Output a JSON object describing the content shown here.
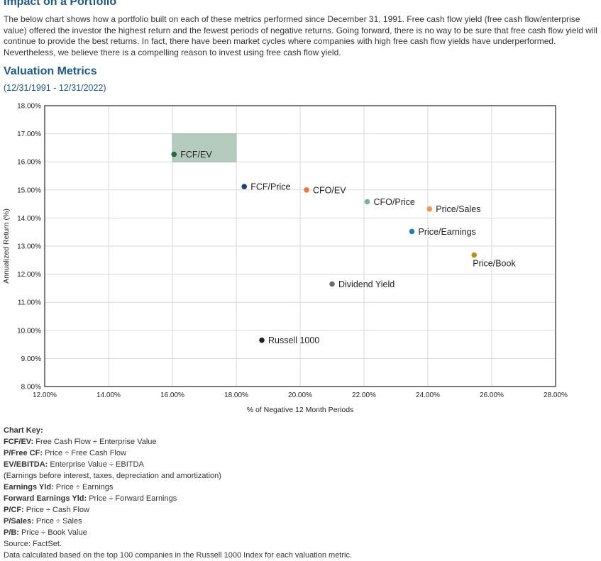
{
  "header": {
    "top_heading": "Impact on a Portfolio",
    "intro": "The below chart shows how a portfolio built on each of these metrics performed since December 31, 1991. Free cash flow yield (free cash flow/enterprise value) offered the investor the highest return and the fewest periods of negative returns. Going forward, there is no way to be sure that free cash flow yield will continue to provide the best returns. In fact, there have been market cycles where companies with high free cash flow yields have underperformed. Nevertheless, we believe there is a compelling reason to invest using free cash flow yield.",
    "section_title": "Valuation Metrics",
    "date_range": "(12/31/1991 - 12/31/2022)"
  },
  "chart_data": {
    "type": "scatter",
    "xlabel": "% of Negative 12 Month Periods",
    "ylabel": "Annualized Return (%)",
    "xlim": [
      12,
      28
    ],
    "ylim": [
      8,
      18
    ],
    "x_ticks": [
      "12.00%",
      "14.00%",
      "16.00%",
      "18.00%",
      "20.00%",
      "22.00%",
      "24.00%",
      "26.00%",
      "28.00%"
    ],
    "y_ticks": [
      "8.00%",
      "9.00%",
      "10.00%",
      "11.00%",
      "12.00%",
      "13.00%",
      "14.00%",
      "15.00%",
      "16.00%",
      "17.00%",
      "18.00%"
    ],
    "grid": true,
    "highlight_region": {
      "x": [
        16,
        18
      ],
      "y": [
        16,
        17
      ],
      "color": "#b4cbbd"
    },
    "points": [
      {
        "label": "FCF/EV",
        "x": 16.05,
        "y": 16.27,
        "color": "#1a6e3c",
        "label_pos": "right"
      },
      {
        "label": "FCF/Price",
        "x": 18.25,
        "y": 15.12,
        "color": "#1f3f7a",
        "label_pos": "right"
      },
      {
        "label": "CFO/EV",
        "x": 20.2,
        "y": 15.0,
        "color": "#e8793a",
        "label_pos": "right"
      },
      {
        "label": "CFO/Price",
        "x": 22.1,
        "y": 14.58,
        "color": "#7aaea3",
        "label_pos": "right"
      },
      {
        "label": "Price/Sales",
        "x": 24.05,
        "y": 14.32,
        "color": "#f0964e",
        "label_pos": "right"
      },
      {
        "label": "Price/Earnings",
        "x": 23.5,
        "y": 13.52,
        "color": "#2a7cb5",
        "label_pos": "right"
      },
      {
        "label": "Price/Book",
        "x": 25.45,
        "y": 12.68,
        "color": "#b4941e",
        "label_pos": "below"
      },
      {
        "label": "Dividend Yield",
        "x": 21.0,
        "y": 11.65,
        "color": "#6e6e6e",
        "label_pos": "right"
      },
      {
        "label": "Russell 1000",
        "x": 18.8,
        "y": 9.65,
        "color": "#222222",
        "label_pos": "right"
      }
    ]
  },
  "chart_key": {
    "heading": "Chart Key:",
    "items": [
      {
        "term": "FCF/EV:",
        "def": " Free Cash Flow ÷ Enterprise Value"
      },
      {
        "term": "P/Free CF:",
        "def": " Price ÷ Free Cash Flow"
      },
      {
        "term": "EV/EBITDA:",
        "def": " Enterprise Value ÷ EBITDA"
      },
      {
        "term": "",
        "def": "(Earnings before interest, taxes, depreciation and amortization)"
      },
      {
        "term": "Earnings Yld:",
        "def": " Price ÷ Earnings"
      },
      {
        "term": "Forward Earnings Yld:",
        "def": " Price ÷ Forward Earnings"
      },
      {
        "term": "P/CF:",
        "def": " Price ÷ Cash Flow"
      },
      {
        "term": "P/Sales:",
        "def": " Price ÷ Sales"
      },
      {
        "term": "P/B:",
        "def": " Price ÷ Book Value"
      }
    ],
    "source": "Source: FactSet.",
    "note": "Data calculated based on the top 100 companies in the Russell 1000 Index for each valuation metric."
  }
}
